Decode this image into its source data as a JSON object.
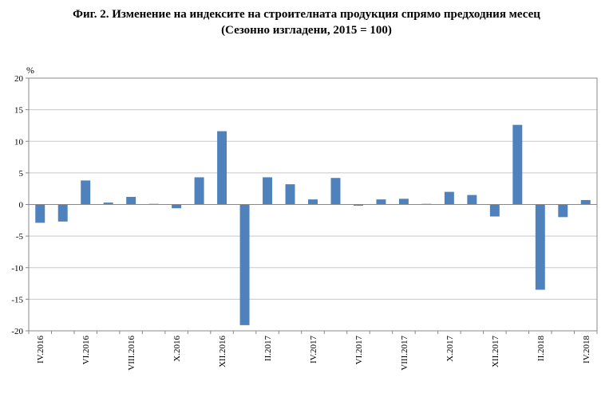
{
  "title": {
    "line1": "Фиг. 2. Изменение на индексите на строителната продукция спрямо предходния месец",
    "line2": "(Сезонно изгладени, 2015 = 100)"
  },
  "colors": {
    "bar": "#4f81bd",
    "grid": "#c8c8c8",
    "axis": "#888888"
  },
  "chart_data": {
    "type": "bar",
    "title": "Фиг. 2. Изменение на индексите на строителната продукция спрямо предходния месец (Сезонно изгладени, 2015 = 100)",
    "ylabel": "%",
    "ylim": [
      -20,
      20
    ],
    "ystep": 5,
    "grid": true,
    "legend": "none",
    "categories": [
      "IV.2016",
      "V.2016",
      "VI.2016",
      "VII.2016",
      "VIII.2016",
      "IX.2016",
      "X.2016",
      "XI.2016",
      "XII.2016",
      "I.2017",
      "II.2017",
      "III.2017",
      "IV.2017",
      "V.2017",
      "VI.2017",
      "VII.2017",
      "VIII.2017",
      "IX.2017",
      "X.2017",
      "XI.2017",
      "XII.2017",
      "I.2018",
      "II.2018",
      "III.2018",
      "IV.2018"
    ],
    "tick_labels": [
      "IV.2016",
      "",
      "VI.2016",
      "",
      "VIII.2016",
      "",
      "X.2016",
      "",
      "XII.2016",
      "",
      "II.2017",
      "",
      "IV.2017",
      "",
      "VI.2017",
      "",
      "VIII.2017",
      "",
      "X.2017",
      "",
      "XII.2017",
      "",
      "II.2018",
      "",
      "IV.2018"
    ],
    "values": [
      -2.9,
      -2.7,
      3.8,
      0.3,
      1.2,
      0.1,
      -0.6,
      4.3,
      11.6,
      -19.1,
      4.3,
      3.2,
      0.8,
      4.2,
      -0.2,
      0.8,
      0.9,
      0.1,
      2.0,
      1.5,
      -1.9,
      12.6,
      -13.5,
      -2.0,
      0.7
    ]
  }
}
